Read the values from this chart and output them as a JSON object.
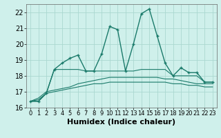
{
  "xlabel": "Humidex (Indice chaleur)",
  "x": [
    0,
    1,
    2,
    3,
    4,
    5,
    6,
    7,
    8,
    9,
    10,
    11,
    12,
    13,
    14,
    15,
    16,
    17,
    18,
    19,
    20,
    21,
    22,
    23
  ],
  "line1": [
    16.4,
    16.4,
    16.9,
    18.4,
    18.8,
    19.1,
    19.3,
    18.3,
    18.3,
    19.4,
    21.1,
    20.9,
    18.3,
    20.0,
    21.9,
    22.2,
    20.5,
    18.8,
    18.0,
    18.5,
    18.2,
    18.2,
    17.6,
    17.6
  ],
  "line2": [
    16.4,
    16.4,
    16.9,
    18.4,
    18.4,
    18.4,
    18.4,
    18.3,
    18.3,
    18.3,
    18.3,
    18.3,
    18.3,
    18.3,
    18.4,
    18.4,
    18.4,
    18.4,
    18.0,
    18.0,
    18.0,
    18.0,
    17.6,
    17.6
  ],
  "line3": [
    16.4,
    16.6,
    17.0,
    17.1,
    17.2,
    17.3,
    17.5,
    17.6,
    17.7,
    17.8,
    17.9,
    17.9,
    17.9,
    17.9,
    17.9,
    17.9,
    17.9,
    17.8,
    17.8,
    17.7,
    17.6,
    17.5,
    17.5,
    17.5
  ],
  "line4": [
    16.4,
    16.5,
    16.9,
    17.0,
    17.1,
    17.2,
    17.3,
    17.4,
    17.5,
    17.5,
    17.6,
    17.6,
    17.6,
    17.6,
    17.6,
    17.6,
    17.6,
    17.6,
    17.5,
    17.5,
    17.4,
    17.4,
    17.3,
    17.3
  ],
  "line_color": "#1a7a6a",
  "bg_color": "#cff0eb",
  "grid_color": "#aad8d0",
  "ylim": [
    16,
    22.5
  ],
  "xlim": [
    -0.5,
    23.5
  ],
  "yticks": [
    16,
    17,
    18,
    19,
    20,
    21,
    22
  ],
  "xticks": [
    0,
    1,
    2,
    3,
    4,
    5,
    6,
    7,
    8,
    9,
    10,
    11,
    12,
    13,
    14,
    15,
    16,
    17,
    18,
    19,
    20,
    21,
    22,
    23
  ],
  "fontsize": 7,
  "marker": "+"
}
